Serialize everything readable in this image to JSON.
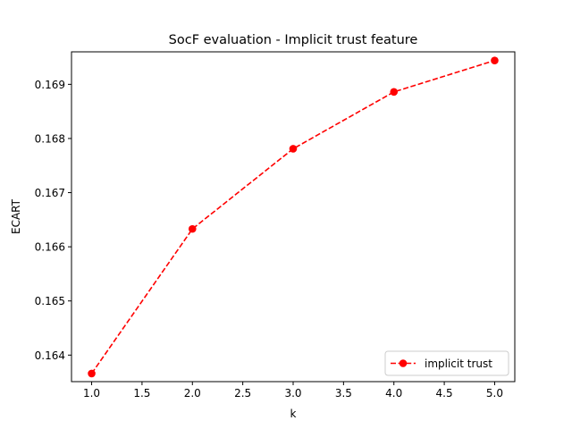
{
  "chart_data": {
    "type": "line",
    "title": "SocF evaluation - Implicit trust feature",
    "xlabel": "k",
    "ylabel": "ECART",
    "x": [
      1.0,
      2.0,
      3.0,
      4.0,
      5.0
    ],
    "series": [
      {
        "name": "implicit trust",
        "values": [
          0.16366,
          0.16633,
          0.16781,
          0.16886,
          0.16944
        ],
        "color": "#ff0000",
        "line_style": "dashed",
        "marker": "circle"
      }
    ],
    "xlim": [
      0.8,
      5.2
    ],
    "ylim": [
      0.16351,
      0.1696
    ],
    "xticks": [
      1.0,
      1.5,
      2.0,
      2.5,
      3.0,
      3.5,
      4.0,
      4.5,
      5.0
    ],
    "xtick_labels": [
      "1.0",
      "1.5",
      "2.0",
      "2.5",
      "3.0",
      "3.5",
      "4.0",
      "4.5",
      "5.0"
    ],
    "yticks": [
      0.164,
      0.165,
      0.166,
      0.167,
      0.168,
      0.169
    ],
    "ytick_labels": [
      "0.164",
      "0.165",
      "0.166",
      "0.167",
      "0.168",
      "0.169"
    ],
    "grid": false,
    "legend_position": "lower-right"
  }
}
